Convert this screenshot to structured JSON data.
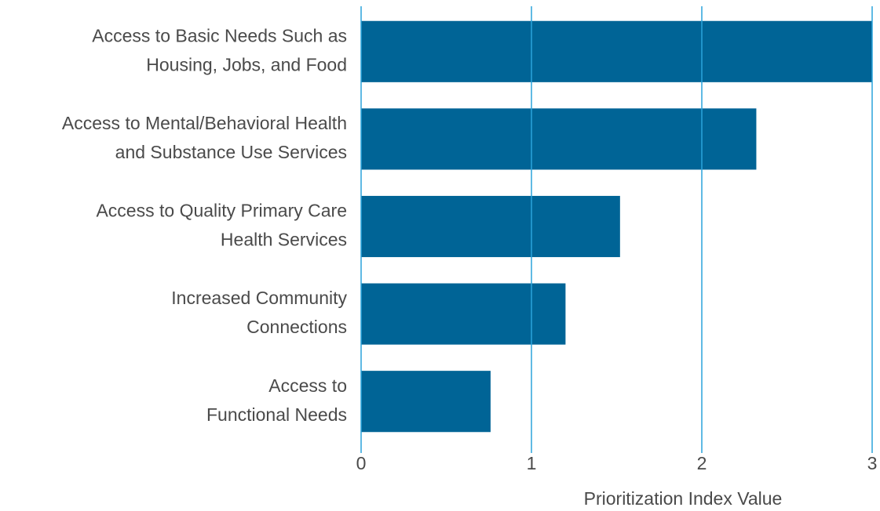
{
  "chart_data": {
    "type": "bar",
    "orientation": "horizontal",
    "categories": [
      [
        "Access to Basic Needs Such as",
        "Housing, Jobs, and Food"
      ],
      [
        "Access to Mental/Behavioral Health",
        "and Substance Use Services"
      ],
      [
        "Access to Quality Primary Care",
        "Health Services"
      ],
      [
        "Increased Community",
        "Connections"
      ],
      [
        "Access to",
        "Functional Needs"
      ]
    ],
    "values": [
      3.0,
      2.32,
      1.52,
      1.2,
      0.76
    ],
    "color": "#006496",
    "xlabel": "Prioritization Index Value",
    "xlim": [
      0,
      3
    ],
    "xticks": [
      0,
      1,
      2,
      3
    ],
    "grid": true,
    "grid_color": "#2ba3dc"
  }
}
